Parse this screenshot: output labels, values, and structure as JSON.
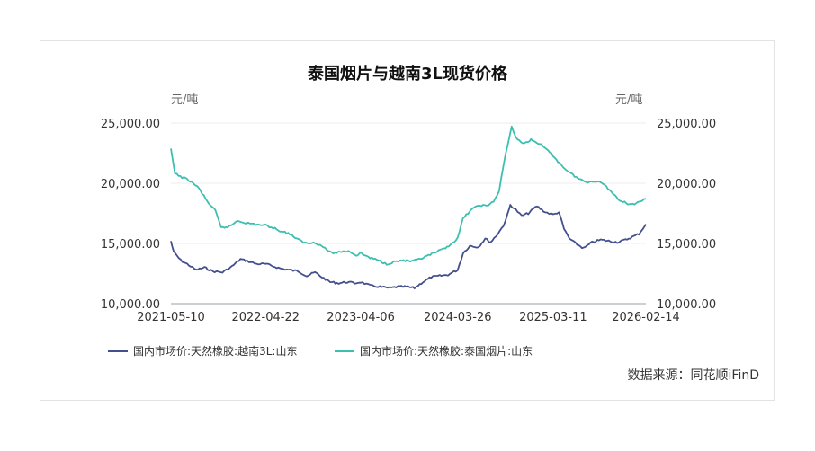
{
  "chart_data": {
    "type": "line",
    "title": "泰国烟片与越南3L现货价格",
    "y_unit_left": "元/吨",
    "y_unit_right": "元/吨",
    "ylim": [
      10000,
      25000
    ],
    "yticks": [
      "25,000.00",
      "20,000.00",
      "15,000.00",
      "10,000.00"
    ],
    "xlim": [
      "2021-05-10",
      "2026-02-14"
    ],
    "xticks": [
      "2021-05-10",
      "2022-04-22",
      "2023-04-06",
      "2024-03-26",
      "2025-03-11",
      "2026-02-14"
    ],
    "grid": true,
    "legend_position": "bottom",
    "source": "数据来源：同花顺iFinD",
    "series": [
      {
        "name": "国内市场价:天然橡胶:越南3L:山东",
        "color": "#44508c",
        "points": [
          [
            "2021-05-10",
            15200
          ],
          [
            "2021-05-20",
            14300
          ],
          [
            "2021-06-15",
            13600
          ],
          [
            "2021-07-15",
            13200
          ],
          [
            "2021-08-10",
            12800
          ],
          [
            "2021-09-10",
            13000
          ],
          [
            "2021-10-10",
            12700
          ],
          [
            "2021-11-15",
            12600
          ],
          [
            "2021-12-20",
            13100
          ],
          [
            "2022-01-20",
            13700
          ],
          [
            "2022-02-20",
            13500
          ],
          [
            "2022-03-20",
            13300
          ],
          [
            "2022-04-22",
            13300
          ],
          [
            "2022-05-20",
            13100
          ],
          [
            "2022-06-20",
            12900
          ],
          [
            "2022-07-20",
            12800
          ],
          [
            "2022-08-20",
            12700
          ],
          [
            "2022-09-20",
            12300
          ],
          [
            "2022-10-20",
            12600
          ],
          [
            "2022-11-15",
            12200
          ],
          [
            "2022-12-15",
            11800
          ],
          [
            "2023-01-15",
            11700
          ],
          [
            "2023-02-15",
            11800
          ],
          [
            "2023-03-15",
            11700
          ],
          [
            "2023-04-06",
            11800
          ],
          [
            "2023-05-10",
            11500
          ],
          [
            "2023-06-15",
            11400
          ],
          [
            "2023-07-20",
            11300
          ],
          [
            "2023-08-20",
            11400
          ],
          [
            "2023-09-20",
            11400
          ],
          [
            "2023-10-20",
            11300
          ],
          [
            "2023-11-20",
            11800
          ],
          [
            "2023-12-20",
            12200
          ],
          [
            "2024-01-20",
            12300
          ],
          [
            "2024-02-20",
            12400
          ],
          [
            "2024-03-26",
            12800
          ],
          [
            "2024-04-15",
            14200
          ],
          [
            "2024-05-10",
            14800
          ],
          [
            "2024-06-10",
            14700
          ],
          [
            "2024-07-05",
            15400
          ],
          [
            "2024-07-25",
            15100
          ],
          [
            "2024-08-20",
            15800
          ],
          [
            "2024-09-10",
            16500
          ],
          [
            "2024-09-25",
            17400
          ],
          [
            "2024-10-05",
            18200
          ],
          [
            "2024-10-25",
            17800
          ],
          [
            "2024-11-15",
            17300
          ],
          [
            "2024-12-10",
            17500
          ],
          [
            "2025-01-10",
            18100
          ],
          [
            "2025-02-10",
            17600
          ],
          [
            "2025-03-11",
            17400
          ],
          [
            "2025-04-01",
            17600
          ],
          [
            "2025-04-20",
            16200
          ],
          [
            "2025-05-10",
            15400
          ],
          [
            "2025-06-01",
            15000
          ],
          [
            "2025-07-01",
            14600
          ],
          [
            "2025-08-01",
            15100
          ],
          [
            "2025-09-01",
            15300
          ],
          [
            "2025-10-01",
            15200
          ],
          [
            "2025-11-01",
            15100
          ],
          [
            "2025-12-01",
            15300
          ],
          [
            "2026-01-01",
            15600
          ],
          [
            "2026-01-20",
            15800
          ],
          [
            "2026-02-14",
            16600
          ]
        ]
      },
      {
        "name": "国内市场价:天然橡胶:泰国烟片:山东",
        "color": "#3dbfb0",
        "points": [
          [
            "2021-05-10",
            22800
          ],
          [
            "2021-05-25",
            20800
          ],
          [
            "2021-06-20",
            20500
          ],
          [
            "2021-07-20",
            20200
          ],
          [
            "2021-08-20",
            19600
          ],
          [
            "2021-09-20",
            18500
          ],
          [
            "2021-10-20",
            17700
          ],
          [
            "2021-11-10",
            16300
          ],
          [
            "2021-12-10",
            16400
          ],
          [
            "2022-01-10",
            16900
          ],
          [
            "2022-02-10",
            16700
          ],
          [
            "2022-03-10",
            16600
          ],
          [
            "2022-04-22",
            16500
          ],
          [
            "2022-05-20",
            16300
          ],
          [
            "2022-06-20",
            16000
          ],
          [
            "2022-07-20",
            15800
          ],
          [
            "2022-08-20",
            15300
          ],
          [
            "2022-09-20",
            15000
          ],
          [
            "2022-10-20",
            15100
          ],
          [
            "2022-11-20",
            14700
          ],
          [
            "2022-12-20",
            14200
          ],
          [
            "2023-01-20",
            14300
          ],
          [
            "2023-02-20",
            14400
          ],
          [
            "2023-03-20",
            14000
          ],
          [
            "2023-04-06",
            14200
          ],
          [
            "2023-05-10",
            13800
          ],
          [
            "2023-06-10",
            13600
          ],
          [
            "2023-07-10",
            13300
          ],
          [
            "2023-08-10",
            13500
          ],
          [
            "2023-09-10",
            13600
          ],
          [
            "2023-10-10",
            13500
          ],
          [
            "2023-11-10",
            13700
          ],
          [
            "2023-12-10",
            14000
          ],
          [
            "2024-01-10",
            14300
          ],
          [
            "2024-02-10",
            14600
          ],
          [
            "2024-03-26",
            15400
          ],
          [
            "2024-04-15",
            17100
          ],
          [
            "2024-05-15",
            17800
          ],
          [
            "2024-06-15",
            18200
          ],
          [
            "2024-07-10",
            18100
          ],
          [
            "2024-08-05",
            18500
          ],
          [
            "2024-08-25",
            19300
          ],
          [
            "2024-09-10",
            21500
          ],
          [
            "2024-09-25",
            23200
          ],
          [
            "2024-10-10",
            24700
          ],
          [
            "2024-10-25",
            23800
          ],
          [
            "2024-11-20",
            23300
          ],
          [
            "2024-12-20",
            23600
          ],
          [
            "2025-01-20",
            23300
          ],
          [
            "2025-02-15",
            22800
          ],
          [
            "2025-03-11",
            22300
          ],
          [
            "2025-04-10",
            21500
          ],
          [
            "2025-05-10",
            20900
          ],
          [
            "2025-06-10",
            20400
          ],
          [
            "2025-07-10",
            20100
          ],
          [
            "2025-08-10",
            20200
          ],
          [
            "2025-09-10",
            20000
          ],
          [
            "2025-10-10",
            19300
          ],
          [
            "2025-11-10",
            18600
          ],
          [
            "2025-12-10",
            18300
          ],
          [
            "2026-01-10",
            18300
          ],
          [
            "2026-02-14",
            18700
          ]
        ]
      }
    ]
  }
}
